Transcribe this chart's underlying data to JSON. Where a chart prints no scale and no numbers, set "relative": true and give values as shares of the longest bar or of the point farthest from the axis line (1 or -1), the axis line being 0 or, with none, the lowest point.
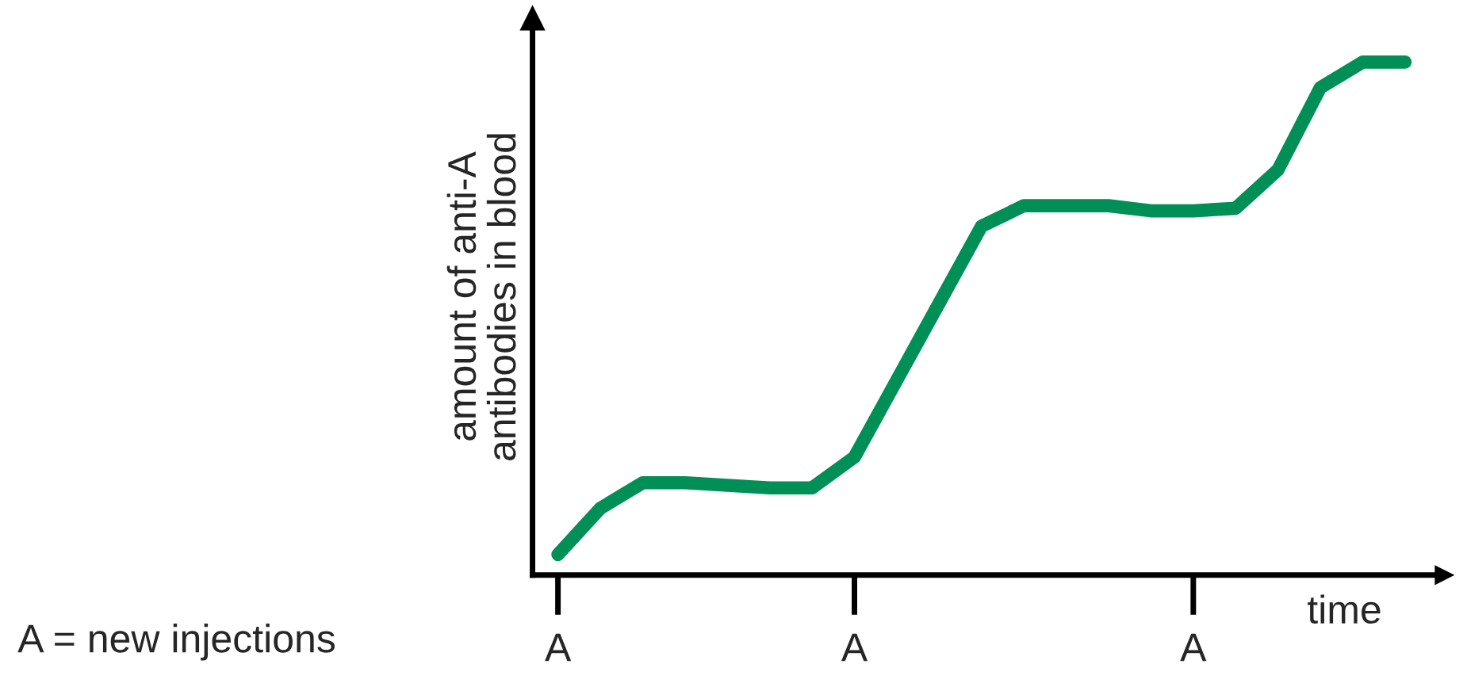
{
  "chart_data": {
    "type": "line",
    "relative": true,
    "xlabel": "time",
    "ylabel": "amount of anti-A\nantibodies in blood",
    "annotations": [
      "A = new injections"
    ],
    "categories": [
      "A",
      null,
      null,
      null,
      null,
      null,
      null,
      "A",
      null,
      null,
      null,
      null,
      null,
      null,
      null,
      "A",
      null,
      null,
      null,
      null,
      null
    ],
    "grid": false,
    "legend": false,
    "marker": "none",
    "line_style": "solid",
    "series": [
      {
        "color": "#009057",
        "values": [
          0.04,
          0.13,
          0.18,
          0.18,
          0.175,
          0.17,
          0.17,
          0.23,
          0.38,
          0.53,
          0.68,
          0.72,
          0.72,
          0.72,
          0.71,
          0.71,
          0.715,
          0.79,
          0.95,
          1.0,
          1.0
        ]
      }
    ]
  }
}
